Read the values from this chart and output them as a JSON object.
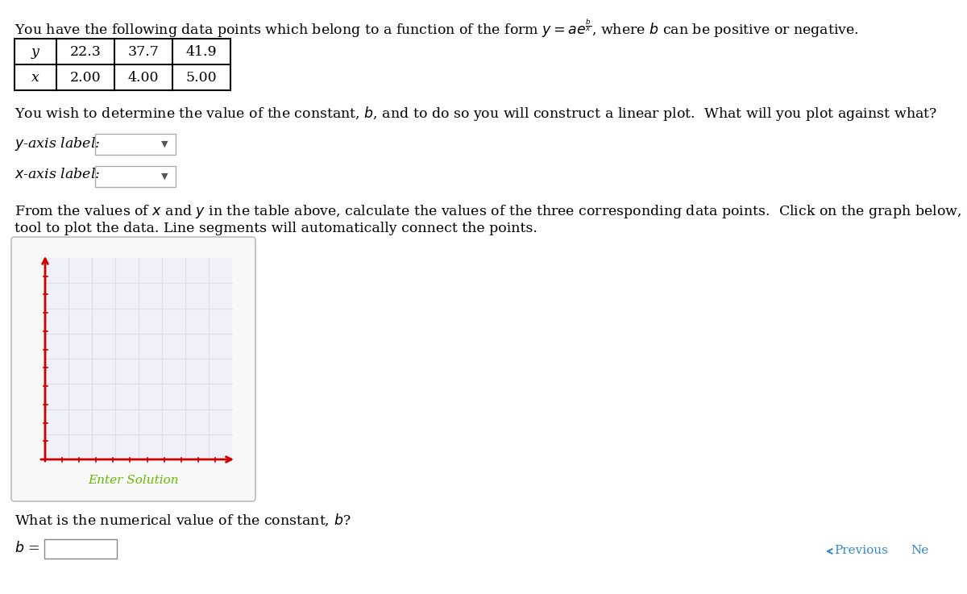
{
  "table_y_label": "y",
  "table_x_label": "x",
  "table_y_values": [
    "22.3",
    "37.7",
    "41.9"
  ],
  "table_x_values": [
    "2.00",
    "4.00",
    "5.00"
  ],
  "ylabel_label": "y-axis label:",
  "xlabel_label": "x-axis label:",
  "enter_solution": "Enter Solution",
  "question": "What is the numerical value of the constant, $b$?",
  "nav_previous": "Previous",
  "nav_next": "Ne",
  "bg_color": "#ffffff",
  "text_color": "#000000",
  "axes_color": "#cc0000",
  "graph_inner_bg": "#f5f5f5",
  "graph_plot_bg": "#f0f0f5",
  "graph_border_color": "#cccccc",
  "enter_solution_color": "#66bb00",
  "nav_arrow_color": "#3388cc",
  "font_size_main": 12.5,
  "font_size_nav": 11
}
